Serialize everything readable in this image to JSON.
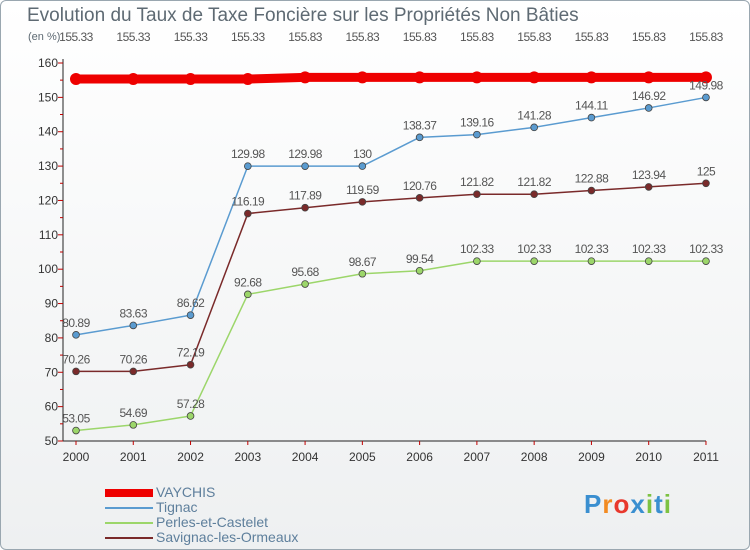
{
  "title": "Evolution du Taux de Taxe Foncière sur les Propriétés Non Bâties",
  "unit_label": "(en %)",
  "logo": {
    "text": "Proxiti",
    "colors": [
      "#3a8fd0",
      "#f28b22",
      "#e8382d",
      "#3a8fd0",
      "#7dc242",
      "#3a8fd0",
      "#7dc242"
    ]
  },
  "chart_data": {
    "type": "line",
    "x": [
      "2000",
      "2001",
      "2002",
      "2003",
      "2004",
      "2005",
      "2006",
      "2007",
      "2008",
      "2009",
      "2010",
      "2011"
    ],
    "ylim": [
      50,
      160
    ],
    "yticks": [
      "50",
      "60",
      "70",
      "80",
      "90",
      "100",
      "110",
      "120",
      "130",
      "140",
      "150",
      "160"
    ],
    "grid": false,
    "legend_position": "bottom-left",
    "series": [
      {
        "name": "VAYCHIS",
        "color": "#ee0000",
        "values": [
          155.33,
          155.33,
          155.33,
          155.33,
          155.83,
          155.83,
          155.83,
          155.83,
          155.83,
          155.83,
          155.83,
          155.83
        ],
        "labels": [
          "155.33",
          "155.33",
          "155.33",
          "155.33",
          "155.83",
          "155.83",
          "155.83",
          "155.83",
          "155.83",
          "155.83",
          "155.83",
          "155.83"
        ]
      },
      {
        "name": "Tignac",
        "color": "#5a9bd0",
        "values": [
          80.89,
          83.63,
          86.62,
          129.98,
          129.98,
          130,
          138.37,
          139.16,
          141.28,
          144.11,
          146.92,
          149.98
        ],
        "labels": [
          "80.89",
          "83.63",
          "86.62",
          "129.98",
          "129.98",
          "130",
          "138.37",
          "139.16",
          "141.28",
          "144.11",
          "146.92",
          "149.98"
        ]
      },
      {
        "name": "Perles-et-Castelet",
        "color": "#9cd66a",
        "values": [
          53.05,
          54.69,
          57.28,
          92.68,
          95.68,
          98.67,
          99.54,
          102.33,
          102.33,
          102.33,
          102.33,
          102.33
        ],
        "labels": [
          "53.05",
          "54.69",
          "57.28",
          "92.68",
          "95.68",
          "98.67",
          "99.54",
          "102.33",
          "102.33",
          "102.33",
          "102.33",
          "102.33"
        ]
      },
      {
        "name": "Savignac-les-Ormeaux",
        "color": "#7a2a2a",
        "values": [
          70.26,
          70.26,
          72.19,
          116.19,
          117.89,
          119.59,
          120.76,
          121.82,
          121.82,
          122.88,
          123.94,
          125
        ],
        "labels": [
          "70.26",
          "70.26",
          "72.19",
          "116.19",
          "117.89",
          "119.59",
          "120.76",
          "121.82",
          "121.82",
          "122.88",
          "123.94",
          "125"
        ]
      }
    ]
  }
}
